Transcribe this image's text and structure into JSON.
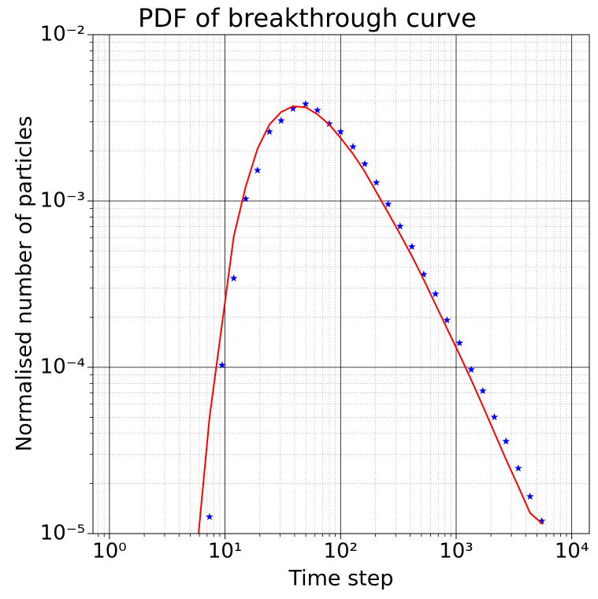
{
  "chart_data": {
    "type": "scatter",
    "title": "PDF of breakthrough curve",
    "xlabel": "Time step",
    "ylabel": "Normalised number of particles",
    "xscale": "log",
    "yscale": "log",
    "grid": true,
    "minor_grid": true,
    "xlim": [
      0.72,
      14200
    ],
    "ylim": [
      1e-05,
      0.01
    ],
    "xticks": [
      {
        "value": 1,
        "label": "10⁰"
      },
      {
        "value": 10,
        "label": "10¹"
      },
      {
        "value": 100,
        "label": "10²"
      },
      {
        "value": 1000,
        "label": "10³"
      },
      {
        "value": 10000,
        "label": "10⁴"
      }
    ],
    "yticks": [
      {
        "value": 1e-05,
        "label": "10⁻⁵"
      },
      {
        "value": 0.0001,
        "label": "10⁻⁴"
      },
      {
        "value": 0.001,
        "label": "10⁻³"
      },
      {
        "value": 0.01,
        "label": "10⁻²"
      }
    ],
    "series": [
      {
        "kind": "scatter",
        "color": "#0000ff",
        "x": [
          7.34,
          9.44,
          11.9,
          15.1,
          19.1,
          24.2,
          30.6,
          38.7,
          49.8,
          63,
          79.8,
          100,
          128,
          162,
          204,
          258,
          327,
          414,
          524,
          662,
          833,
          1070,
          1350,
          1700,
          2140,
          2700,
          3450,
          4360,
          5500
        ],
        "values": [
          1.26e-05,
          0.000103,
          0.000343,
          0.00103,
          0.00153,
          0.00261,
          0.00304,
          0.00359,
          0.00383,
          0.00351,
          0.00291,
          0.00261,
          0.00212,
          0.00167,
          0.00129,
          0.000957,
          0.000705,
          0.000531,
          0.000362,
          0.000276,
          0.000192,
          0.00014,
          9.68e-05,
          7.21e-05,
          5.02e-05,
          3.59e-05,
          2.47e-05,
          1.67e-05,
          1.19e-05
        ]
      },
      {
        "kind": "line",
        "color": "#ff0000",
        "x": [
          5.9,
          7.34,
          9.44,
          11.9,
          15.1,
          19.1,
          24.2,
          30.6,
          38.7,
          49.8,
          63,
          79.8,
          100,
          128,
          162,
          204,
          258,
          327,
          414,
          524,
          662,
          833,
          1070,
          1350,
          1700,
          2140,
          2700,
          3450,
          4360,
          5600
        ],
        "values": [
          1e-05,
          4.98e-05,
          0.000184,
          0.000612,
          0.00122,
          0.00206,
          0.00288,
          0.00343,
          0.00371,
          0.00366,
          0.00332,
          0.00288,
          0.00239,
          0.00192,
          0.0015,
          0.00113,
          0.000849,
          0.000632,
          0.000466,
          0.000336,
          0.000239,
          0.000171,
          0.000119,
          8.4e-05,
          5.86e-05,
          4.05e-05,
          2.79e-05,
          1.92e-05,
          1.33e-05,
          1.14e-05
        ]
      }
    ]
  }
}
